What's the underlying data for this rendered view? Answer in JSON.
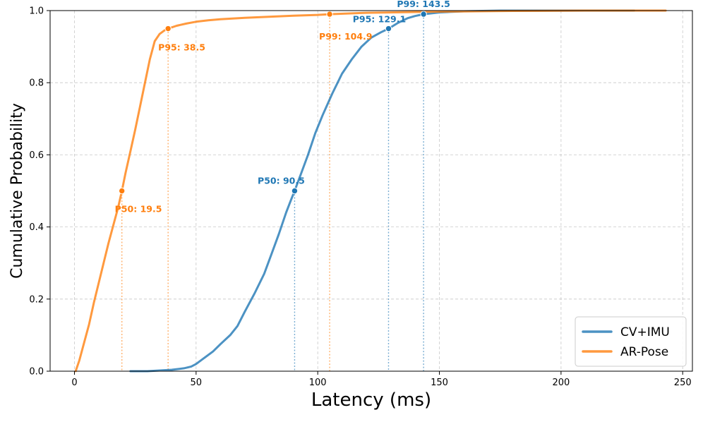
{
  "chart_data": {
    "type": "line",
    "title": "",
    "xlabel": "Latency (ms)",
    "ylabel": "Cumulative Probability",
    "xlim": [
      -10,
      254
    ],
    "ylim": [
      0,
      1.0
    ],
    "xticks": [
      "0",
      "50",
      "100",
      "150",
      "200",
      "250"
    ],
    "yticks": [
      "0.0",
      "0.2",
      "0.4",
      "0.6",
      "0.8",
      "1.0"
    ],
    "grid": true,
    "legend_position": "bottom-right",
    "series": [
      {
        "name": "CV+IMU",
        "color": "#1f77b4",
        "x": [
          23,
          30,
          35,
          40,
          45,
          48,
          50,
          53,
          57,
          60,
          64,
          67,
          70,
          74,
          78,
          81,
          84,
          87,
          89,
          90.5,
          93,
          96,
          99,
          102,
          106,
          110,
          114,
          118,
          122,
          126,
          129.1,
          133,
          137,
          140,
          143.5,
          150,
          160,
          175,
          200,
          230
        ],
        "y": [
          0.0,
          0.0,
          0.002,
          0.004,
          0.008,
          0.013,
          0.02,
          0.035,
          0.055,
          0.075,
          0.1,
          0.125,
          0.165,
          0.215,
          0.27,
          0.325,
          0.38,
          0.44,
          0.475,
          0.5,
          0.545,
          0.6,
          0.66,
          0.71,
          0.77,
          0.825,
          0.865,
          0.9,
          0.925,
          0.94,
          0.95,
          0.966,
          0.979,
          0.985,
          0.99,
          0.995,
          0.998,
          1.0,
          1.0,
          1.0
        ],
        "percentiles": [
          {
            "label": "P50: 90.5",
            "x": 90.5,
            "y": 0.5
          },
          {
            "label": "P95: 129.1",
            "x": 129.1,
            "y": 0.95
          },
          {
            "label": "P99: 143.5",
            "x": 143.5,
            "y": 0.99
          }
        ]
      },
      {
        "name": "AR-Pose",
        "color": "#ff7f0e",
        "x": [
          0.5,
          2,
          4,
          6,
          8,
          10,
          12,
          14,
          16,
          18,
          19.5,
          21,
          23,
          25,
          27,
          29,
          31,
          33,
          35,
          37,
          38.5,
          42,
          46,
          50,
          55,
          60,
          70,
          80,
          90,
          100,
          104.9,
          120,
          150,
          180,
          210,
          243
        ],
        "y": [
          0.0,
          0.03,
          0.08,
          0.13,
          0.19,
          0.245,
          0.3,
          0.355,
          0.405,
          0.455,
          0.5,
          0.55,
          0.61,
          0.67,
          0.735,
          0.8,
          0.865,
          0.915,
          0.935,
          0.945,
          0.95,
          0.958,
          0.964,
          0.969,
          0.973,
          0.976,
          0.98,
          0.983,
          0.986,
          0.988,
          0.99,
          0.994,
          0.997,
          0.999,
          1.0,
          1.0
        ],
        "percentiles": [
          {
            "label": "P50: 19.5",
            "x": 19.5,
            "y": 0.5
          },
          {
            "label": "P95: 38.5",
            "x": 38.5,
            "y": 0.95
          },
          {
            "label": "P99: 104.9",
            "x": 104.9,
            "y": 0.99
          }
        ]
      }
    ]
  }
}
